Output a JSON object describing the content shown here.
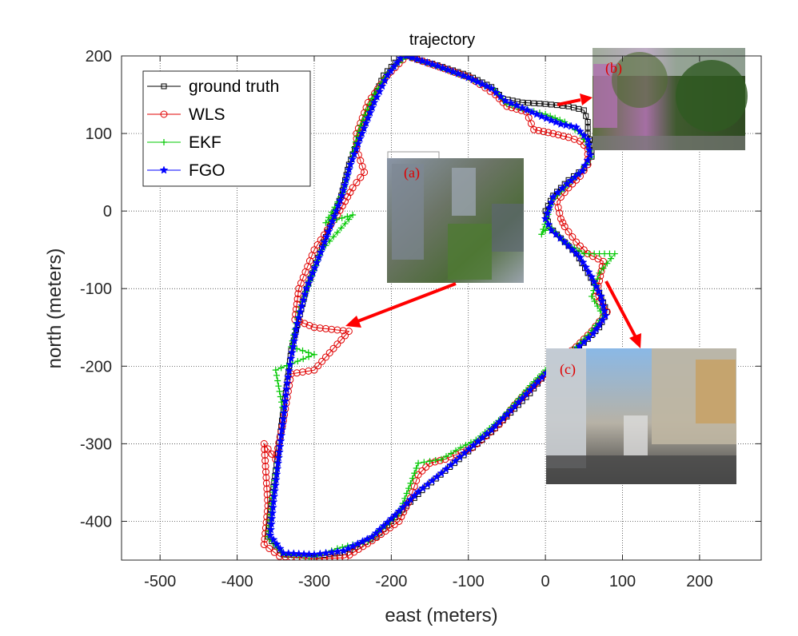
{
  "chart_data": {
    "type": "line",
    "title": "trajectory",
    "xlabel": "east (meters)",
    "ylabel": "north (meters)",
    "xlim": [
      -550,
      280
    ],
    "ylim": [
      -450,
      200
    ],
    "xticks": [
      -500,
      -400,
      -300,
      -200,
      -100,
      0,
      100,
      200
    ],
    "yticks": [
      200,
      100,
      0,
      -100,
      -200,
      -300,
      -400
    ],
    "grid": true,
    "legend_position": "top-left",
    "series": [
      {
        "name": "ground truth",
        "color": "#000000",
        "marker": "square",
        "points": [
          [
            -180,
            200
          ],
          [
            -140,
            188
          ],
          [
            -100,
            175
          ],
          [
            -70,
            160
          ],
          [
            -55,
            145
          ],
          [
            -30,
            140
          ],
          [
            0,
            138
          ],
          [
            30,
            135
          ],
          [
            50,
            130
          ],
          [
            55,
            115
          ],
          [
            55,
            100
          ],
          [
            60,
            85
          ],
          [
            60,
            70
          ],
          [
            50,
            55
          ],
          [
            30,
            40
          ],
          [
            10,
            20
          ],
          [
            0,
            0
          ],
          [
            5,
            -20
          ],
          [
            20,
            -35
          ],
          [
            40,
            -55
          ],
          [
            55,
            -80
          ],
          [
            70,
            -105
          ],
          [
            80,
            -130
          ],
          [
            70,
            -150
          ],
          [
            50,
            -170
          ],
          [
            20,
            -190
          ],
          [
            0,
            -210
          ],
          [
            -20,
            -235
          ],
          [
            -45,
            -260
          ],
          [
            -70,
            -285
          ],
          [
            -100,
            -310
          ],
          [
            -130,
            -335
          ],
          [
            -160,
            -360
          ],
          [
            -190,
            -390
          ],
          [
            -220,
            -420
          ],
          [
            -260,
            -440
          ],
          [
            -300,
            -445
          ],
          [
            -340,
            -443
          ],
          [
            -360,
            -420
          ],
          [
            -355,
            -370
          ],
          [
            -348,
            -320
          ],
          [
            -342,
            -270
          ],
          [
            -335,
            -220
          ],
          [
            -330,
            -180
          ],
          [
            -320,
            -140
          ],
          [
            -310,
            -100
          ],
          [
            -295,
            -60
          ],
          [
            -280,
            -20
          ],
          [
            -265,
            20
          ],
          [
            -255,
            60
          ],
          [
            -240,
            100
          ],
          [
            -225,
            140
          ],
          [
            -210,
            175
          ],
          [
            -190,
            197
          ],
          [
            -180,
            200
          ]
        ]
      },
      {
        "name": "WLS",
        "color": "#e00000",
        "marker": "circle",
        "points": [
          [
            -180,
            200
          ],
          [
            -138,
            186
          ],
          [
            -98,
            172
          ],
          [
            -65,
            150
          ],
          [
            -50,
            135
          ],
          [
            -25,
            128
          ],
          [
            -15,
            105
          ],
          [
            10,
            100
          ],
          [
            30,
            95
          ],
          [
            45,
            90
          ],
          [
            55,
            80
          ],
          [
            55,
            60
          ],
          [
            45,
            45
          ],
          [
            30,
            30
          ],
          [
            15,
            12
          ],
          [
            20,
            -10
          ],
          [
            25,
            -20
          ],
          [
            40,
            -40
          ],
          [
            55,
            -55
          ],
          [
            75,
            -65
          ],
          [
            70,
            -90
          ],
          [
            65,
            -110
          ],
          [
            80,
            -130
          ],
          [
            60,
            -155
          ],
          [
            40,
            -175
          ],
          [
            15,
            -195
          ],
          [
            -10,
            -220
          ],
          [
            -40,
            -250
          ],
          [
            -60,
            -275
          ],
          [
            -95,
            -305
          ],
          [
            -130,
            -320
          ],
          [
            -150,
            -325
          ],
          [
            -165,
            -340
          ],
          [
            -175,
            -370
          ],
          [
            -190,
            -400
          ],
          [
            -225,
            -425
          ],
          [
            -260,
            -447
          ],
          [
            -300,
            -448
          ],
          [
            -345,
            -445
          ],
          [
            -365,
            -430
          ],
          [
            -360,
            -380
          ],
          [
            -365,
            -300
          ],
          [
            -350,
            -320
          ],
          [
            -340,
            -270
          ],
          [
            -330,
            -210
          ],
          [
            -300,
            -205
          ],
          [
            -255,
            -155
          ],
          [
            -300,
            -150
          ],
          [
            -325,
            -140
          ],
          [
            -320,
            -100
          ],
          [
            -300,
            -50
          ],
          [
            -270,
            -5
          ],
          [
            -250,
            30
          ],
          [
            -235,
            50
          ],
          [
            -245,
            80
          ],
          [
            -245,
            100
          ],
          [
            -230,
            140
          ],
          [
            -205,
            175
          ],
          [
            -180,
            200
          ]
        ]
      },
      {
        "name": "EKF",
        "color": "#00c800",
        "marker": "plus",
        "points": [
          [
            -180,
            200
          ],
          [
            -140,
            187
          ],
          [
            -100,
            172
          ],
          [
            -65,
            155
          ],
          [
            -50,
            138
          ],
          [
            -30,
            132
          ],
          [
            0,
            125
          ],
          [
            25,
            115
          ],
          [
            45,
            100
          ],
          [
            55,
            85
          ],
          [
            60,
            70
          ],
          [
            45,
            50
          ],
          [
            25,
            30
          ],
          [
            10,
            15
          ],
          [
            -5,
            -30
          ],
          [
            5,
            -20
          ],
          [
            25,
            -40
          ],
          [
            50,
            -55
          ],
          [
            90,
            -55
          ],
          [
            70,
            -80
          ],
          [
            60,
            -110
          ],
          [
            75,
            -135
          ],
          [
            55,
            -160
          ],
          [
            30,
            -185
          ],
          [
            0,
            -205
          ],
          [
            -20,
            -225
          ],
          [
            -55,
            -265
          ],
          [
            -90,
            -295
          ],
          [
            -110,
            -305
          ],
          [
            -135,
            -320
          ],
          [
            -165,
            -325
          ],
          [
            -190,
            -390
          ],
          [
            -230,
            -425
          ],
          [
            -270,
            -435
          ],
          [
            -300,
            -446
          ],
          [
            -340,
            -442
          ],
          [
            -360,
            -420
          ],
          [
            -355,
            -370
          ],
          [
            -345,
            -310
          ],
          [
            -340,
            -260
          ],
          [
            -350,
            -205
          ],
          [
            -300,
            -185
          ],
          [
            -330,
            -175
          ],
          [
            -320,
            -130
          ],
          [
            -305,
            -90
          ],
          [
            -290,
            -50
          ],
          [
            -250,
            -5
          ],
          [
            -285,
            -15
          ],
          [
            -262,
            25
          ],
          [
            -250,
            75
          ],
          [
            -240,
            110
          ],
          [
            -225,
            145
          ],
          [
            -205,
            178
          ],
          [
            -180,
            200
          ]
        ]
      },
      {
        "name": "FGO",
        "color": "#0000ff",
        "marker": "star",
        "points": [
          [
            -180,
            200
          ],
          [
            -140,
            187
          ],
          [
            -100,
            172
          ],
          [
            -70,
            158
          ],
          [
            -52,
            142
          ],
          [
            -30,
            133
          ],
          [
            -5,
            122
          ],
          [
            20,
            112
          ],
          [
            40,
            108
          ],
          [
            55,
            92
          ],
          [
            58,
            72
          ],
          [
            48,
            52
          ],
          [
            28,
            35
          ],
          [
            10,
            18
          ],
          [
            0,
            -10
          ],
          [
            8,
            -25
          ],
          [
            25,
            -40
          ],
          [
            45,
            -60
          ],
          [
            60,
            -85
          ],
          [
            72,
            -110
          ],
          [
            78,
            -135
          ],
          [
            62,
            -158
          ],
          [
            38,
            -180
          ],
          [
            12,
            -198
          ],
          [
            -10,
            -220
          ],
          [
            -40,
            -252
          ],
          [
            -70,
            -282
          ],
          [
            -105,
            -312
          ],
          [
            -135,
            -338
          ],
          [
            -165,
            -362
          ],
          [
            -195,
            -392
          ],
          [
            -225,
            -420
          ],
          [
            -262,
            -438
          ],
          [
            -300,
            -443
          ],
          [
            -340,
            -441
          ],
          [
            -357,
            -418
          ],
          [
            -352,
            -368
          ],
          [
            -346,
            -318
          ],
          [
            -340,
            -268
          ],
          [
            -335,
            -222
          ],
          [
            -330,
            -190
          ],
          [
            -322,
            -145
          ],
          [
            -310,
            -100
          ],
          [
            -294,
            -60
          ],
          [
            -279,
            -20
          ],
          [
            -264,
            20
          ],
          [
            -253,
            60
          ],
          [
            -238,
            100
          ],
          [
            -222,
            140
          ],
          [
            -205,
            175
          ],
          [
            -188,
            197
          ],
          [
            -180,
            200
          ]
        ]
      }
    ],
    "annotations": [
      {
        "label": "(a)",
        "photo": "aerial view of dense high-rise city district"
      },
      {
        "label": "(b)",
        "photo": "street lined with tall trees and buildings"
      },
      {
        "label": "(c)",
        "photo": "urban street canyon between tall buildings"
      }
    ],
    "annotation_arrow_color": "#ff0000"
  }
}
